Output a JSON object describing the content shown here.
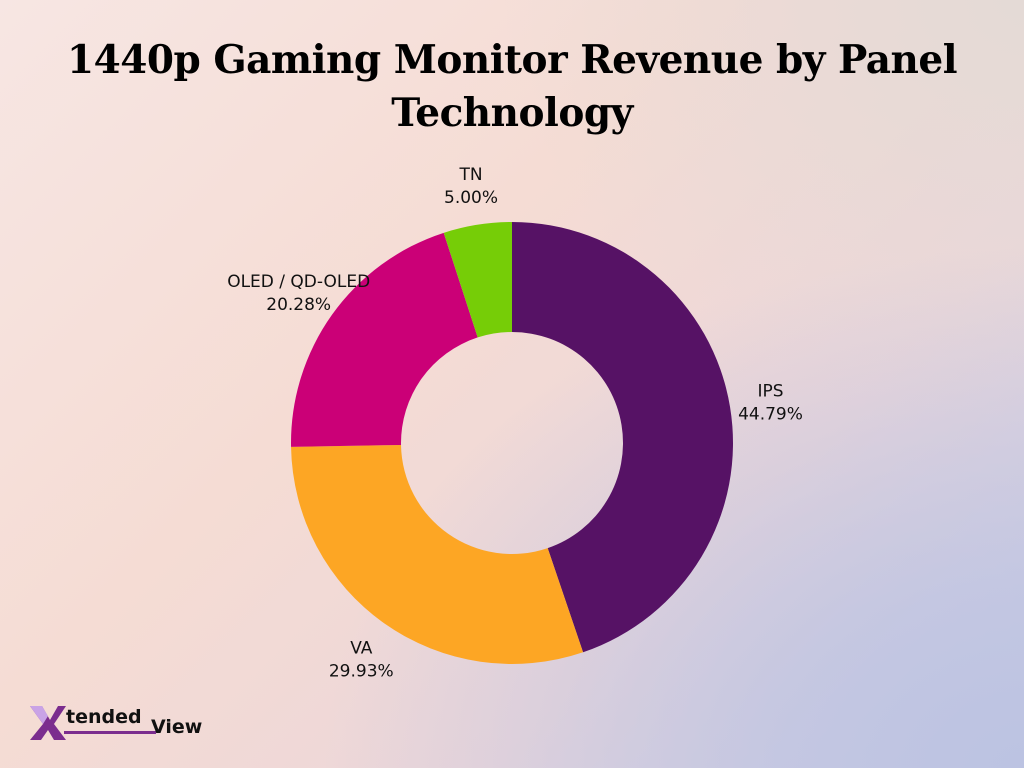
{
  "title": "1440p Gaming Monitor Revenue by Panel Technology",
  "chart_data": {
    "type": "pie",
    "donut": true,
    "title": "1440p Gaming Monitor Revenue by Panel Technology",
    "slices": [
      {
        "label": "IPS",
        "value": 44.79,
        "display": "44.79%",
        "color": "#561265"
      },
      {
        "label": "VA",
        "value": 29.93,
        "display": "29.93%",
        "color": "#fda624"
      },
      {
        "label": "OLED / QD-OLED",
        "value": 20.28,
        "display": "20.28%",
        "color": "#cb0077"
      },
      {
        "label": "TN",
        "value": 5.0,
        "display": "5.00%",
        "color": "#76cd07"
      }
    ],
    "start_angle": "top, clockwise",
    "legend": "none",
    "labels": "outside"
  },
  "logo": {
    "part1": "tended",
    "part2": "View",
    "mark": "X",
    "colors": {
      "mark": "#7b2d8e",
      "mark_accent": "#c9a3e6"
    }
  }
}
